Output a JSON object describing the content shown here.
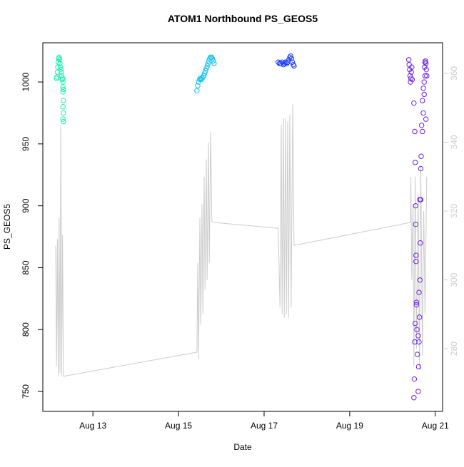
{
  "chart_data": {
    "type": "scatter",
    "title": "ATOM1 Northbound PS_GEOS5",
    "x_label": "Date",
    "y_label": "PS_GEOS5",
    "xlim": [
      11.83,
      21.17
    ],
    "ylim": [
      733.9,
      1031.7
    ],
    "y2lim": [
      261.8,
      368.9
    ],
    "xticks": [
      {
        "value": 13,
        "label": "Aug 13"
      },
      {
        "value": 15,
        "label": "Aug 15"
      },
      {
        "value": 17,
        "label": "Aug 17"
      },
      {
        "value": 19,
        "label": "Aug 19"
      },
      {
        "value": 21,
        "label": "Aug 21"
      }
    ],
    "yticks": [
      750,
      800,
      850,
      900,
      950,
      1000
    ],
    "y2ticks": [
      280,
      300,
      320,
      340,
      360
    ],
    "y2_color": "#cccccc",
    "series": [
      {
        "color": "#19f0b0",
        "x": [
          12.15,
          12.16,
          12.17,
          12.18,
          12.19,
          12.2,
          12.21,
          12.22,
          12.23,
          12.24,
          12.25,
          12.26,
          12.27,
          12.28,
          12.29,
          12.3,
          12.3,
          12.31,
          12.3,
          12.31,
          12.3,
          12.31,
          12.3,
          12.31
        ],
        "values": [
          1003,
          1004,
          1008,
          1012,
          1016,
          1019,
          1020,
          1018,
          1015,
          1012,
          1010,
          1008,
          1005,
          1002,
          1003,
          1000,
          996,
          994,
          992,
          985,
          980,
          975,
          970,
          968
        ]
      },
      {
        "color": "#10c0f0",
        "x": [
          15.43,
          15.45,
          15.47,
          15.49,
          15.51,
          15.53,
          15.55,
          15.57,
          15.59,
          15.61,
          15.63,
          15.65,
          15.67,
          15.69,
          15.71,
          15.73,
          15.75,
          15.77,
          15.79,
          15.81,
          15.83
        ],
        "values": [
          993,
          997,
          1000,
          1002,
          1003,
          1002,
          1003,
          1004,
          1005,
          1007,
          1009,
          1011,
          1013,
          1015,
          1017,
          1019,
          1020,
          1020,
          1019,
          1017,
          1015
        ]
      },
      {
        "color": "#1a3cf5",
        "x": [
          17.33,
          17.36,
          17.39,
          17.42,
          17.45,
          17.48,
          17.5,
          17.53,
          17.55,
          17.58,
          17.6,
          17.62,
          17.64,
          17.66,
          17.68,
          17.7
        ],
        "values": [
          1016,
          1015,
          1015,
          1016,
          1014,
          1015,
          1016,
          1015,
          1016,
          1018,
          1020,
          1021,
          1019,
          1016,
          1014,
          1013
        ]
      },
      {
        "color": "#6a20e6",
        "x": [
          20.38,
          20.39,
          20.4,
          20.41,
          20.42,
          20.43,
          20.44,
          20.45,
          20.46,
          20.5,
          20.52,
          20.53,
          20.54,
          20.55,
          20.56,
          20.57,
          20.58,
          20.6,
          20.61,
          20.62,
          20.63,
          20.64,
          20.65,
          20.66,
          20.67,
          20.68,
          20.7,
          20.72,
          20.74,
          20.75,
          20.76,
          20.77,
          20.78,
          20.79,
          20.8,
          20.5,
          20.51,
          20.52,
          20.53,
          20.54,
          20.55,
          20.56,
          20.6,
          20.62,
          20.64,
          20.66,
          20.7,
          20.72,
          20.74,
          20.76,
          20.78
        ],
        "values": [
          1018,
          1014,
          1010,
          1005,
          1000,
          1003,
          1008,
          1012,
          1002,
          983,
          960,
          935,
          900,
          860,
          822,
          800,
          780,
          750,
          770,
          790,
          810,
          840,
          870,
          905,
          940,
          965,
          985,
          995,
          1000,
          1012,
          1016,
          1017,
          1015,
          1010,
          1005,
          745,
          760,
          790,
          805,
          885,
          855,
          820,
          795,
          830,
          905,
          930,
          960,
          975,
          990,
          1005,
          970
        ]
      },
      {
        "color": "#cccccc",
        "axis": "y2",
        "style": "line",
        "x": [
          12.13,
          12.15,
          12.17,
          12.19,
          12.21,
          12.23,
          12.25,
          12.27,
          12.29,
          12.31,
          15.43,
          15.45,
          15.47,
          15.5,
          15.52,
          15.55,
          15.57,
          15.6,
          15.62,
          15.65,
          15.67,
          15.7,
          15.72,
          15.75,
          15.78,
          15.83,
          17.33,
          17.37,
          17.4,
          17.42,
          17.45,
          17.47,
          17.5,
          17.52,
          17.55,
          17.57,
          17.6,
          17.63,
          17.67,
          17.7,
          20.42,
          20.43,
          20.45,
          20.48,
          20.5,
          20.53,
          20.56,
          20.6,
          20.63,
          20.66,
          20.7,
          20.73,
          20.76,
          20.8
        ],
        "values": [
          310,
          275,
          312,
          272,
          318,
          273,
          345,
          272,
          313,
          272,
          279,
          305,
          277,
          318,
          287,
          322,
          290,
          330,
          297,
          335,
          300,
          340,
          305,
          343,
          317,
          316.7,
          315,
          292,
          345,
          290,
          347,
          289,
          347,
          290,
          346,
          289,
          348,
          292,
          351,
          310,
          316.7,
          330,
          300,
          322,
          275,
          330,
          280,
          325,
          274,
          333,
          278,
          320,
          290,
          330
        ]
      }
    ]
  }
}
